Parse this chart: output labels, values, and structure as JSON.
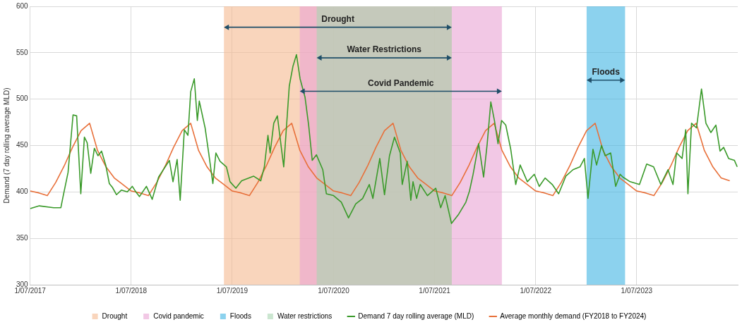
{
  "chart_data": {
    "type": "line",
    "ylabel": "Demand (7 day rolling average MLD)",
    "xlim": [
      "2017-07-01",
      "2024-06-30"
    ],
    "xticks": [
      {
        "value": "2017-07-01",
        "label": "1/07/2017"
      },
      {
        "value": "2018-07-01",
        "label": "1/07/2018"
      },
      {
        "value": "2019-07-01",
        "label": "1/07/2019"
      },
      {
        "value": "2020-07-01",
        "label": "1/07/2020"
      },
      {
        "value": "2021-07-01",
        "label": "1/07/2021"
      },
      {
        "value": "2022-07-01",
        "label": "1/07/2022"
      },
      {
        "value": "2023-07-01",
        "label": "1/07/2023"
      }
    ],
    "ylim": [
      300,
      600
    ],
    "yticks": [
      300,
      350,
      400,
      450,
      500,
      550,
      600
    ],
    "grid": true,
    "legend": "bottom",
    "marker": "none",
    "line_style": "solid",
    "bands": [
      {
        "axis": "x",
        "from": "2019-06-01",
        "to": "2021-09-01",
        "label": "Drought",
        "color": "#f5b990"
      },
      {
        "axis": "x",
        "from": "2020-03-01",
        "to": "2022-03-01",
        "label": "Covid pandemic",
        "color": "#e9a3d3"
      },
      {
        "axis": "x",
        "from": "2023-01-01",
        "to": "2023-05-20",
        "label": "Floods",
        "color": "#3fb4e3"
      },
      {
        "axis": "x",
        "from": "2020-05-01",
        "to": "2021-09-01",
        "label": "Water restrictions",
        "color": "#a9d6b0"
      }
    ],
    "annotations": [
      "Drought",
      "Covid Pandemic",
      "Floods",
      "Water Restrictions"
    ],
    "series": [
      {
        "name": "Demand 7 day rolling average (MLD)",
        "color": "#3a9a2a",
        "x": [
          "2017-07-01",
          "2017-08-03",
          "2017-09-24",
          "2017-10-20",
          "2017-10-28",
          "2017-11-15",
          "2017-12-03",
          "2017-12-16",
          "2017-12-31",
          "2018-01-13",
          "2018-01-23",
          "2018-02-05",
          "2018-02-18",
          "2018-03-03",
          "2018-03-16",
          "2018-03-31",
          "2018-04-13",
          "2018-04-24",
          "2018-05-09",
          "2018-05-27",
          "2018-06-17",
          "2018-07-05",
          "2018-07-18",
          "2018-07-31",
          "2018-08-25",
          "2018-09-15",
          "2018-10-08",
          "2018-11-16",
          "2018-11-29",
          "2018-12-14",
          "2018-12-25",
          "2019-01-09",
          "2019-01-22",
          "2019-02-01",
          "2019-02-14",
          "2019-02-25",
          "2019-03-04",
          "2019-03-25",
          "2019-04-07",
          "2019-04-22",
          "2019-05-03",
          "2019-05-18",
          "2019-06-10",
          "2019-06-23",
          "2019-07-14",
          "2019-08-04",
          "2019-09-16",
          "2019-10-12",
          "2019-10-25",
          "2019-11-07",
          "2019-11-15",
          "2019-11-28",
          "2019-12-11",
          "2020-01-03",
          "2020-01-23",
          "2020-02-05",
          "2020-02-18",
          "2020-03-02",
          "2020-03-20",
          "2020-04-02",
          "2020-04-15",
          "2020-04-30",
          "2020-05-23",
          "2020-06-05",
          "2020-07-01",
          "2020-07-29",
          "2020-08-24",
          "2020-09-19",
          "2020-10-14",
          "2020-11-07",
          "2020-11-20",
          "2020-12-15",
          "2021-01-01",
          "2021-01-19",
          "2021-02-06",
          "2021-02-27",
          "2021-03-06",
          "2021-03-24",
          "2021-04-06",
          "2021-04-14",
          "2021-04-27",
          "2021-05-10",
          "2021-06-05",
          "2021-07-05",
          "2021-07-23",
          "2021-08-08",
          "2021-08-31",
          "2021-09-26",
          "2021-10-22",
          "2021-11-04",
          "2021-11-17",
          "2021-12-07",
          "2021-12-25",
          "2022-01-07",
          "2022-01-20",
          "2022-02-02",
          "2022-02-15",
          "2022-02-28",
          "2022-03-15",
          "2022-04-02",
          "2022-04-20",
          "2022-05-06",
          "2022-06-01",
          "2022-06-26",
          "2022-07-14",
          "2022-08-04",
          "2022-08-30",
          "2022-09-22",
          "2022-10-18",
          "2022-11-13",
          "2022-12-08",
          "2022-12-24",
          "2023-01-06",
          "2023-01-24",
          "2023-02-06",
          "2023-02-24",
          "2023-03-09",
          "2023-03-29",
          "2023-04-16",
          "2023-05-02",
          "2023-05-12",
          "2023-06-07",
          "2023-07-11",
          "2023-08-06",
          "2023-08-31",
          "2023-09-26",
          "2023-10-22",
          "2023-11-09",
          "2023-11-22",
          "2023-12-12",
          "2023-12-25",
          "2024-01-02",
          "2024-01-15",
          "2024-02-02",
          "2024-02-20",
          "2024-03-07",
          "2024-03-25",
          "2024-04-12",
          "2024-04-27",
          "2024-05-10",
          "2024-05-28",
          "2024-06-18",
          "2024-06-28"
        ],
        "values": [
          382,
          385,
          383,
          383,
          395,
          421,
          483,
          482,
          398,
          459,
          453,
          420,
          447,
          439,
          444,
          429,
          409,
          405,
          397,
          402,
          400,
          406,
          400,
          395,
          406,
          392,
          416,
          434,
          411,
          435,
          391,
          467,
          461,
          508,
          522,
          477,
          498,
          469,
          442,
          409,
          442,
          433,
          427,
          411,
          404,
          412,
          417,
          412,
          427,
          461,
          442,
          474,
          482,
          427,
          514,
          535,
          548,
          522,
          502,
          472,
          434,
          440,
          424,
          398,
          396,
          389,
          372,
          387,
          393,
          408,
          393,
          436,
          397,
          439,
          459,
          442,
          408,
          433,
          391,
          411,
          393,
          408,
          396,
          404,
          383,
          396,
          366,
          376,
          389,
          401,
          419,
          452,
          416,
          452,
          497,
          477,
          452,
          477,
          472,
          446,
          408,
          429,
          411,
          419,
          406,
          415,
          408,
          398,
          417,
          424,
          427,
          436,
          393,
          446,
          429,
          450,
          439,
          442,
          406,
          419,
          416,
          411,
          408,
          430,
          427,
          408,
          424,
          408,
          442,
          436,
          467,
          398,
          474,
          469,
          511,
          474,
          464,
          472,
          444,
          448,
          436,
          434,
          427
        ]
      },
      {
        "name": "Average monthly demand (FY2018 to FY2024)",
        "color": "#e8703a",
        "x": [
          "2017-07-01",
          "2017-08-01",
          "2017-09-01",
          "2017-10-01",
          "2017-11-01",
          "2017-12-01",
          "2018-01-01",
          "2018-02-01",
          "2018-03-01",
          "2018-04-01",
          "2018-05-01",
          "2018-06-01",
          "2018-07-01",
          "2018-08-01",
          "2018-09-01",
          "2018-10-01",
          "2018-11-01",
          "2018-12-01",
          "2019-01-01",
          "2019-02-01",
          "2019-03-01",
          "2019-04-01",
          "2019-05-01",
          "2019-06-01",
          "2019-07-01",
          "2019-08-01",
          "2019-09-01",
          "2019-10-01",
          "2019-11-01",
          "2019-12-01",
          "2020-01-01",
          "2020-02-01",
          "2020-03-01",
          "2020-04-01",
          "2020-05-01",
          "2020-06-01",
          "2020-07-01",
          "2020-08-01",
          "2020-09-01",
          "2020-10-01",
          "2020-11-01",
          "2020-12-01",
          "2021-01-01",
          "2021-02-01",
          "2021-03-01",
          "2021-04-01",
          "2021-05-01",
          "2021-06-01",
          "2021-07-01",
          "2021-08-01",
          "2021-09-01",
          "2021-10-01",
          "2021-11-01",
          "2021-12-01",
          "2022-01-01",
          "2022-02-01",
          "2022-03-01",
          "2022-04-01",
          "2022-05-01",
          "2022-06-01",
          "2022-07-01",
          "2022-08-01",
          "2022-09-01",
          "2022-10-01",
          "2022-11-01",
          "2022-12-01",
          "2023-01-01",
          "2023-02-01",
          "2023-03-01",
          "2023-04-01",
          "2023-05-01",
          "2023-06-01",
          "2023-07-01",
          "2023-08-01",
          "2023-09-01",
          "2023-10-01",
          "2023-11-01",
          "2023-12-01",
          "2024-01-01",
          "2024-02-01",
          "2024-03-01",
          "2024-04-01",
          "2024-05-01",
          "2024-06-01"
        ],
        "values": [
          401,
          399,
          396,
          410,
          428,
          448,
          466,
          474,
          445,
          427,
          415,
          408,
          401,
          399,
          396,
          410,
          428,
          448,
          466,
          474,
          445,
          427,
          415,
          408,
          401,
          399,
          396,
          410,
          428,
          448,
          466,
          474,
          445,
          427,
          415,
          408,
          401,
          399,
          396,
          410,
          428,
          448,
          466,
          474,
          445,
          427,
          415,
          408,
          401,
          399,
          396,
          410,
          428,
          448,
          466,
          474,
          445,
          427,
          415,
          408,
          401,
          399,
          396,
          410,
          428,
          448,
          466,
          474,
          445,
          427,
          415,
          408,
          401,
          399,
          396,
          410,
          428,
          448,
          466,
          474,
          445,
          427,
          415,
          412
        ]
      }
    ]
  }
}
